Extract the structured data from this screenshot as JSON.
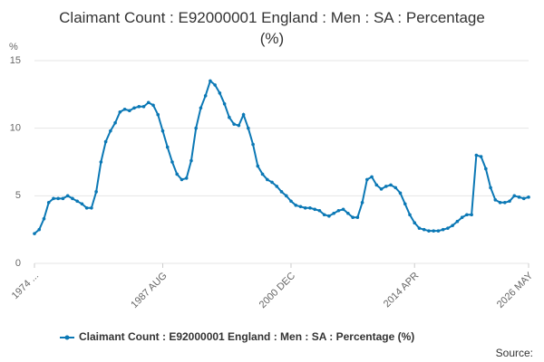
{
  "chart_data": {
    "type": "line",
    "title": "Claimant Count : E92000001 England : Men : SA : Percentage (%)",
    "y_axis_label": "%",
    "source": "Source:",
    "categories": [
      "1974 ...",
      null,
      null,
      null,
      null,
      null,
      null,
      null,
      null,
      null,
      null,
      null,
      null,
      null,
      null,
      null,
      null,
      null,
      null,
      null,
      null,
      null,
      null,
      null,
      null,
      null,
      null,
      "1987 AUG",
      null,
      null,
      null,
      null,
      null,
      null,
      null,
      null,
      null,
      null,
      null,
      null,
      null,
      null,
      null,
      null,
      null,
      null,
      null,
      null,
      null,
      null,
      null,
      null,
      null,
      null,
      "2000 DEC",
      null,
      null,
      null,
      null,
      null,
      null,
      null,
      null,
      null,
      null,
      null,
      null,
      null,
      null,
      null,
      null,
      null,
      null,
      null,
      null,
      null,
      null,
      null,
      null,
      null,
      "2014 APR",
      null,
      null,
      null,
      null,
      null,
      null,
      null,
      null,
      null,
      null,
      null,
      null,
      null,
      null,
      null,
      null,
      null,
      null,
      null,
      null,
      null,
      null,
      null,
      "2026 MAY"
    ],
    "series": [
      {
        "name": "Claimant Count : E92000001 England : Men : SA : Percentage (%)",
        "color": "#0b78b5",
        "values": [
          2.2,
          2.5,
          3.3,
          4.5,
          4.8,
          4.8,
          4.8,
          5.0,
          4.8,
          4.6,
          4.4,
          4.1,
          4.1,
          5.3,
          7.5,
          9.0,
          9.8,
          10.4,
          11.2,
          11.4,
          11.3,
          11.5,
          11.6,
          11.6,
          11.9,
          11.7,
          11.0,
          9.8,
          8.6,
          7.5,
          6.6,
          6.2,
          6.3,
          7.6,
          10.0,
          11.5,
          12.4,
          13.5,
          13.2,
          12.6,
          11.8,
          10.8,
          10.3,
          10.2,
          11.0,
          10.0,
          8.8,
          7.2,
          6.6,
          6.2,
          6.0,
          5.7,
          5.3,
          5.0,
          4.6,
          4.3,
          4.2,
          4.1,
          4.1,
          4.0,
          3.9,
          3.6,
          3.5,
          3.7,
          3.9,
          4.0,
          3.7,
          3.4,
          3.4,
          4.5,
          6.2,
          6.4,
          5.8,
          5.5,
          5.7,
          5.8,
          5.6,
          5.2,
          4.4,
          3.6,
          3.0,
          2.6,
          2.5,
          2.4,
          2.4,
          2.4,
          2.5,
          2.6,
          2.8,
          3.1,
          3.4,
          3.6,
          3.6,
          8.0,
          7.9,
          7.0,
          5.6,
          4.7,
          4.5,
          4.5,
          4.6,
          5.0,
          4.9,
          4.8,
          4.9
        ]
      }
    ],
    "ylim": [
      0,
      15
    ],
    "yticks": [
      0,
      5,
      10,
      15
    ],
    "grid": true,
    "legend": "bottom"
  }
}
